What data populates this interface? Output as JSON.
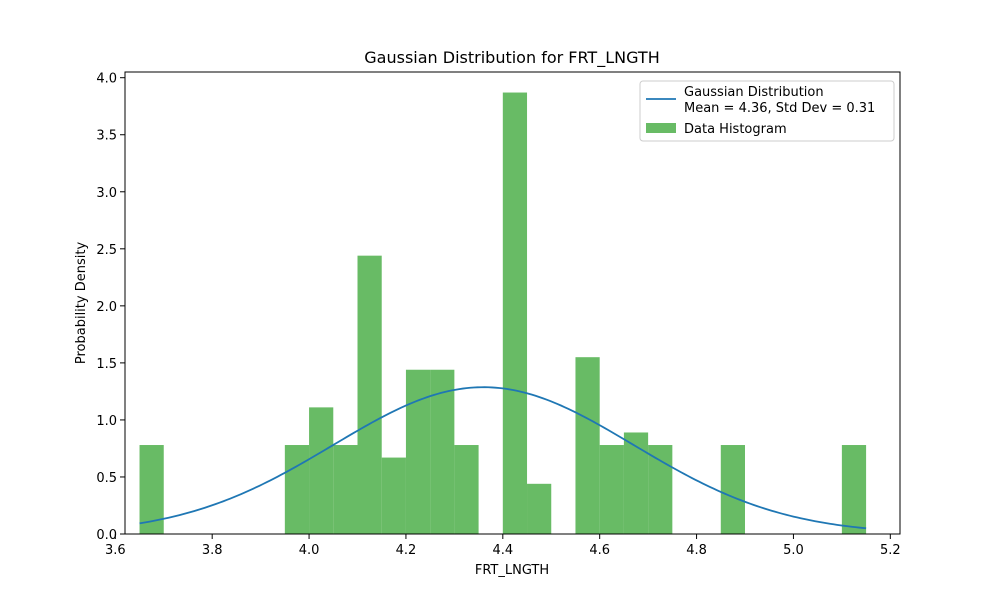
{
  "chart_data": {
    "type": "bar",
    "title": "Gaussian Distribution for FRT_LNGTH",
    "xlabel": "FRT_LNGTH",
    "ylabel": "Probability Density",
    "xlim": [
      3.62,
      5.22
    ],
    "ylim": [
      0,
      4.05
    ],
    "xticks": [
      "3.6",
      "3.8",
      "4.0",
      "4.2",
      "4.4",
      "4.6",
      "4.8",
      "5.0",
      "5.2"
    ],
    "yticks": [
      "0.0",
      "0.5",
      "1.0",
      "1.5",
      "2.0",
      "2.5",
      "3.0",
      "3.5",
      "4.0"
    ],
    "histogram": {
      "name": "Data Histogram",
      "color": "#4daf4a",
      "bin_start": 3.65,
      "bin_width": 0.05,
      "values": [
        0.78,
        0,
        0,
        0,
        0,
        0,
        0.78,
        1.11,
        0.78,
        2.44,
        0.67,
        1.44,
        1.44,
        0.78,
        0,
        3.87,
        0.44,
        0,
        1.55,
        0.78,
        0.89,
        0.78,
        0,
        0,
        0.78,
        0,
        0,
        0,
        0,
        0.78
      ]
    },
    "gaussian": {
      "name": "Gaussian Distribution",
      "stats_label": "Mean = 4.36, Std Dev = 0.31",
      "mean": 4.36,
      "std": 0.31,
      "x_range": [
        3.65,
        5.15
      ],
      "color": "#1f77b4"
    },
    "legend_position": "top-right"
  }
}
